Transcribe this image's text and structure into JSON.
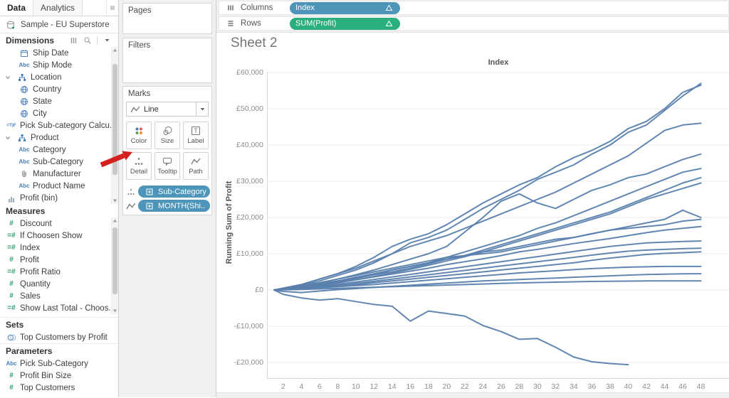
{
  "left_panel": {
    "tabs": [
      {
        "label": "Data",
        "active": true
      },
      {
        "label": "Analytics",
        "active": false
      }
    ],
    "datasource": "Sample - EU Superstore",
    "dimensions": {
      "header": "Dimensions",
      "header_icons": [
        "view-as-table-icon",
        "find-field-icon",
        "menu-caret-icon"
      ],
      "items": [
        {
          "icon": "calendar",
          "label": "Ship Date",
          "indent": 1
        },
        {
          "icon": "abc",
          "label": "Ship Mode",
          "indent": 1
        },
        {
          "icon": "hierarchy",
          "label": "Location",
          "indent": 0,
          "expanded": true
        },
        {
          "icon": "globe",
          "label": "Country",
          "indent": 1
        },
        {
          "icon": "globe",
          "label": "State",
          "indent": 1
        },
        {
          "icon": "globe",
          "label": "City",
          "indent": 1
        },
        {
          "icon": "calc-tf",
          "label": "Pick Sub-category Calcu...",
          "indent": 0
        },
        {
          "icon": "hierarchy",
          "label": "Product",
          "indent": 0,
          "expanded": true
        },
        {
          "icon": "abc",
          "label": "Category",
          "indent": 1
        },
        {
          "icon": "abc",
          "label": "Sub-Category",
          "indent": 1
        },
        {
          "icon": "paperclip",
          "label": "Manufacturer",
          "indent": 1
        },
        {
          "icon": "abc",
          "label": "Product Name",
          "indent": 1
        },
        {
          "icon": "histogram",
          "label": "Profit (bin)",
          "indent": 0
        }
      ]
    },
    "measures": {
      "header": "Measures",
      "items": [
        {
          "icon": "hash",
          "label": "Discount"
        },
        {
          "icon": "calc-hash",
          "label": "If Choosen Show"
        },
        {
          "icon": "calc-hash",
          "label": "Index"
        },
        {
          "icon": "hash",
          "label": "Profit"
        },
        {
          "icon": "calc-hash",
          "label": "Profit Ratio"
        },
        {
          "icon": "hash",
          "label": "Quantity"
        },
        {
          "icon": "hash",
          "label": "Sales"
        },
        {
          "icon": "calc-hash",
          "label": "Show Last Total - Choos..."
        }
      ]
    },
    "sets": {
      "header": "Sets",
      "items": [
        {
          "icon": "set",
          "label": "Top Customers by Profit"
        }
      ]
    },
    "parameters": {
      "header": "Parameters",
      "items": [
        {
          "icon": "abc",
          "label": "Pick Sub-Category"
        },
        {
          "icon": "hash",
          "label": "Profit Bin Size"
        },
        {
          "icon": "hash",
          "label": "Top Customers"
        }
      ]
    }
  },
  "cards": {
    "pages": "Pages",
    "filters": "Filters",
    "marks": "Marks",
    "mark_type": "Line"
  },
  "marks_buttons": [
    {
      "icon": "color",
      "label": "Color"
    },
    {
      "icon": "size",
      "label": "Size"
    },
    {
      "icon": "label",
      "label": "Label"
    },
    {
      "icon": "detail",
      "label": "Detail"
    },
    {
      "icon": "tooltip",
      "label": "Tooltip"
    },
    {
      "icon": "path",
      "label": "Path"
    }
  ],
  "marks_pills": [
    {
      "icon": "detail-dots",
      "label": "Sub-Category"
    },
    {
      "icon": "path",
      "label": "MONTH(Shi.."
    }
  ],
  "shelves": {
    "columns_label": "Columns",
    "rows_label": "Rows",
    "columns_pill": "Index",
    "rows_pill": "SUM(Profit)",
    "pill_badge": "delta"
  },
  "sheet_title": "Sheet 2",
  "annotation": {
    "type": "arrow",
    "target": "detail-button",
    "color": "#d41f1f"
  },
  "colors": {
    "pill_blue": "#4e95ba",
    "pill_green": "#2bb07d",
    "line": "#5880ad",
    "dimension_icon": "#4a7ebb",
    "measure_icon": "#2f9e69",
    "arrow": "#d41f1f"
  },
  "chart_data": {
    "type": "line",
    "title": "Index",
    "ylabel": "Running Sum of Profit",
    "currency": "£",
    "grid": true,
    "legend": "none",
    "xlim": [
      1,
      50
    ],
    "ylim": [
      -24000,
      61500
    ],
    "x_ticks": [
      2,
      4,
      6,
      8,
      10,
      12,
      14,
      16,
      18,
      20,
      22,
      24,
      26,
      28,
      30,
      32,
      34,
      36,
      38,
      40,
      42,
      44,
      46,
      48
    ],
    "y_tick_values": [
      60000,
      50000,
      40000,
      30000,
      20000,
      10000,
      0,
      -10000,
      -20000
    ],
    "y_tick_labels": [
      "£60,000",
      "£50,000",
      "£40,000",
      "£30,000",
      "£20,000",
      "£10,000",
      "£0",
      "-£10,000",
      "-£20,000"
    ],
    "zero_line_style": "dotted",
    "x": [
      1,
      2,
      4,
      6,
      8,
      10,
      12,
      14,
      16,
      18,
      20,
      22,
      24,
      26,
      28,
      30,
      32,
      34,
      36,
      38,
      40,
      42,
      44,
      46,
      48
    ],
    "series": [
      {
        "name": "series-01",
        "values": [
          0,
          500,
          1500,
          3000,
          4500,
          6500,
          9000,
          12000,
          14000,
          15500,
          18000,
          21000,
          24000,
          26500,
          29000,
          31000,
          34000,
          36500,
          38500,
          41000,
          44500,
          46500,
          50000,
          54500,
          56500
        ]
      },
      {
        "name": "series-02",
        "values": [
          0,
          300,
          1200,
          2500,
          4000,
          5500,
          7500,
          10000,
          13000,
          14500,
          16500,
          19500,
          22500,
          25000,
          27500,
          30500,
          32500,
          34500,
          37500,
          40000,
          43500,
          45500,
          49500,
          53500,
          57000
        ]
      },
      {
        "name": "series-03",
        "values": [
          0,
          400,
          1500,
          3000,
          4500,
          6000,
          8000,
          10000,
          12000,
          13500,
          15000,
          17000,
          19000,
          21000,
          23000,
          25000,
          27000,
          29500,
          32000,
          34500,
          37000,
          40500,
          44000,
          45500,
          46000
        ]
      },
      {
        "name": "series-04",
        "values": [
          0,
          300,
          1000,
          2000,
          3000,
          4200,
          5500,
          7000,
          8500,
          10000,
          12000,
          16000,
          20000,
          24500,
          26500,
          24000,
          22500,
          25000,
          27500,
          29000,
          31000,
          32000,
          34000,
          36000,
          37500
        ]
      },
      {
        "name": "series-05",
        "values": [
          0,
          200,
          800,
          1500,
          2300,
          3200,
          4200,
          5500,
          6500,
          7500,
          9000,
          10500,
          12000,
          13500,
          15000,
          17000,
          18500,
          20500,
          22500,
          24500,
          26500,
          28500,
          30500,
          32500,
          33500
        ]
      },
      {
        "name": "series-06",
        "values": [
          0,
          300,
          1000,
          1700,
          2500,
          3300,
          4200,
          5000,
          6000,
          7200,
          8500,
          9500,
          11000,
          12500,
          14000,
          15500,
          17000,
          18500,
          20000,
          21500,
          23500,
          25500,
          27500,
          29500,
          31000
        ]
      },
      {
        "name": "series-07",
        "values": [
          0,
          200,
          700,
          1300,
          2000,
          2800,
          3700,
          4700,
          5700,
          6800,
          8000,
          9200,
          10500,
          12000,
          13500,
          15000,
          16500,
          18000,
          19500,
          21000,
          23000,
          25000,
          26500,
          28000,
          29500
        ]
      },
      {
        "name": "series-08",
        "values": [
          0,
          300,
          1000,
          2000,
          3000,
          4000,
          5000,
          6000,
          7000,
          8000,
          9000,
          9500,
          10000,
          10500,
          11500,
          12500,
          13500,
          14500,
          15500,
          16500,
          17500,
          18500,
          19500,
          22000,
          20000
        ]
      },
      {
        "name": "series-09",
        "values": [
          0,
          200,
          800,
          1500,
          2500,
          3500,
          4500,
          5500,
          6500,
          7500,
          8500,
          9500,
          10500,
          11000,
          12000,
          13000,
          14000,
          14500,
          15500,
          16500,
          17000,
          17500,
          18000,
          19000,
          19500
        ]
      },
      {
        "name": "series-10",
        "values": [
          0,
          200,
          600,
          1200,
          2000,
          2800,
          3600,
          4400,
          5200,
          6000,
          7000,
          7800,
          8600,
          9500,
          10500,
          11200,
          12000,
          12800,
          13500,
          14200,
          15000,
          15800,
          16500,
          17000,
          17500
        ]
      },
      {
        "name": "series-11",
        "values": [
          0,
          100,
          500,
          1000,
          1600,
          2200,
          2900,
          3600,
          4300,
          5000,
          5700,
          6400,
          7100,
          7800,
          8500,
          9200,
          9900,
          10600,
          11300,
          12000,
          12500,
          13000,
          13200,
          13400,
          13500
        ]
      },
      {
        "name": "series-12",
        "values": [
          0,
          100,
          400,
          800,
          1300,
          1800,
          2400,
          3000,
          3600,
          4200,
          4800,
          5400,
          6000,
          6600,
          7200,
          7800,
          8400,
          9000,
          9600,
          10200,
          10700,
          11000,
          11200,
          11400,
          11500
        ]
      },
      {
        "name": "series-13",
        "values": [
          0,
          100,
          400,
          700,
          1100,
          1500,
          2000,
          2500,
          3000,
          3500,
          4000,
          4500,
          5000,
          5500,
          6000,
          6500,
          7000,
          7500,
          8200,
          8800,
          9300,
          9800,
          10100,
          10300,
          10500
        ]
      },
      {
        "name": "series-14",
        "values": [
          0,
          100,
          300,
          600,
          900,
          1200,
          1500,
          1900,
          2300,
          2700,
          3100,
          3500,
          3900,
          4300,
          4700,
          5000,
          5300,
          5600,
          5900,
          6100,
          6300,
          6400,
          6500,
          6500,
          6500
        ]
      },
      {
        "name": "series-15",
        "values": [
          0,
          -400,
          -700,
          -300,
          100,
          400,
          700,
          1000,
          1300,
          1600,
          1900,
          2200,
          2500,
          2700,
          2900,
          3100,
          3300,
          3500,
          3700,
          3900,
          4100,
          4250,
          4350,
          4450,
          4500
        ]
      },
      {
        "name": "series-16",
        "values": [
          0,
          50,
          150,
          300,
          450,
          600,
          750,
          900,
          1050,
          1200,
          1350,
          1500,
          1650,
          1800,
          1950,
          2050,
          2150,
          2250,
          2350,
          2400,
          2450,
          2500,
          2500,
          2500,
          2500
        ]
      },
      {
        "name": "series-17",
        "x": [
          1,
          2,
          4,
          6,
          8,
          10,
          12,
          14,
          16,
          18,
          20,
          22,
          24,
          26,
          28,
          30,
          32,
          34,
          36,
          38,
          40
        ],
        "values": [
          0,
          -1200,
          -2200,
          -2800,
          -2400,
          -3200,
          -4000,
          -4500,
          -8600,
          -5800,
          -6500,
          -7200,
          -9800,
          -11500,
          -13600,
          -13400,
          -15800,
          -18500,
          -19800,
          -20300,
          -20600
        ]
      }
    ]
  }
}
